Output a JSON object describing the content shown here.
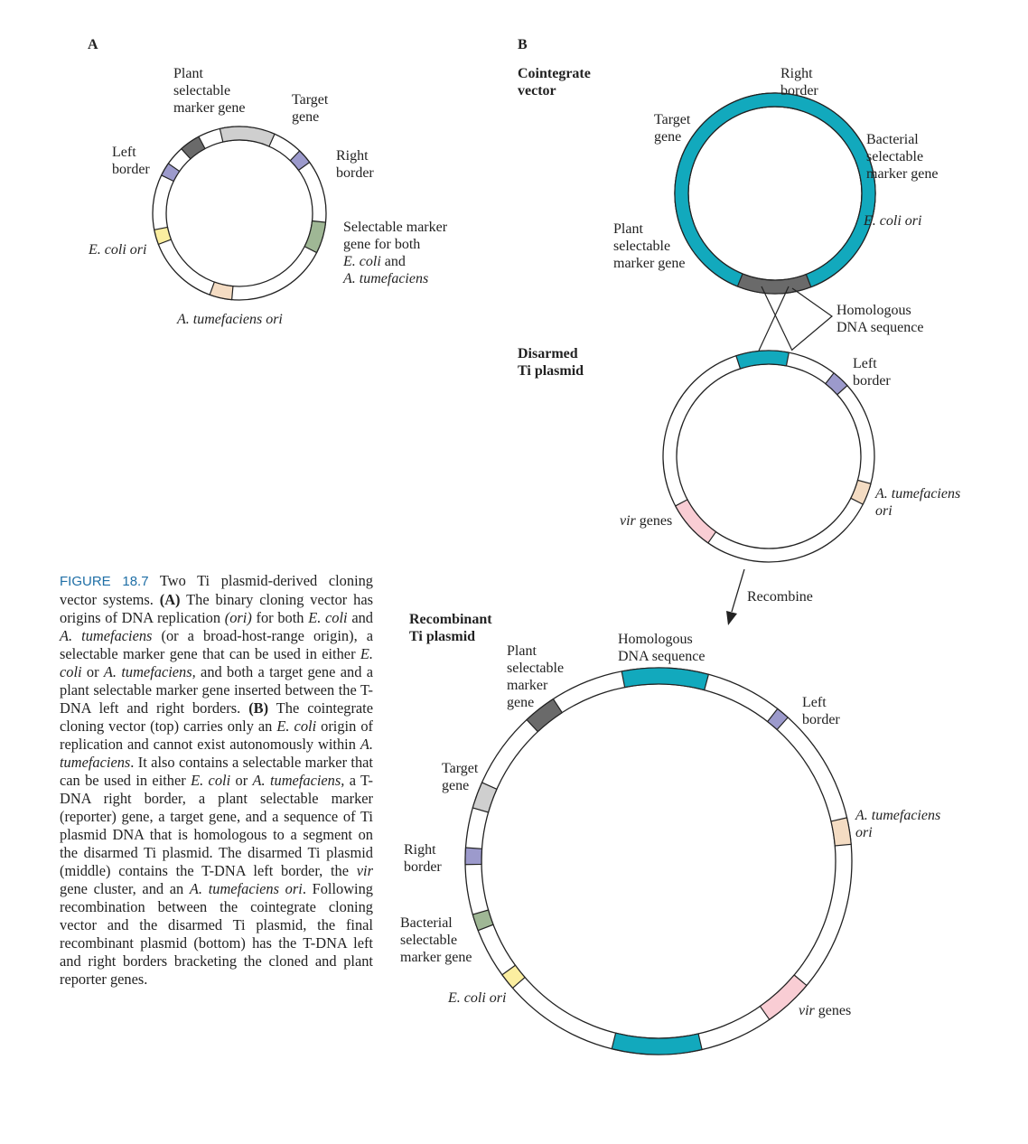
{
  "panel_a": {
    "letter": "A",
    "labels": {
      "plant_marker": [
        "Plant",
        "selectable",
        "marker gene"
      ],
      "target": [
        "Target",
        "gene"
      ],
      "left_border": [
        "Left",
        "border"
      ],
      "right_border": [
        "Right",
        "border"
      ],
      "selectable_marker": [
        "Selectable marker",
        "gene for both"
      ],
      "selectable_marker_species": [
        "E. coli",
        " and",
        "A. tumefaciens"
      ],
      "ecoli_ori": "E. coli ori",
      "atum_ori": "A. tumefaciens ori"
    }
  },
  "panel_b": {
    "letter": "B",
    "cointegrate": {
      "title": [
        "Cointegrate",
        "vector"
      ],
      "right_border": [
        "Right",
        "border"
      ],
      "target": [
        "Target",
        "gene"
      ],
      "bacterial_marker": [
        "Bacterial",
        "selectable",
        "marker gene"
      ],
      "ecoli_ori": "E. coli ori",
      "plant_marker": [
        "Plant",
        "selectable",
        "marker gene"
      ]
    },
    "homologous": [
      "Homologous",
      "DNA sequence"
    ],
    "disarmed": {
      "title": [
        "Disarmed",
        "Ti plasmid"
      ],
      "left_border": [
        "Left",
        "border"
      ],
      "atum_ori": [
        "A. tumefaciens",
        "ori"
      ],
      "vir_italic": "vir",
      "vir_rest": " genes"
    },
    "recombine": "Recombine",
    "recombinant": {
      "title": [
        "Recombinant",
        "Ti plasmid"
      ],
      "plant_marker": [
        "Plant",
        "selectable",
        "marker",
        "gene"
      ],
      "homologous": [
        "Homologous",
        "DNA sequence"
      ],
      "left_border": [
        "Left",
        "border"
      ],
      "target": [
        "Target",
        "gene"
      ],
      "atum_ori": [
        "A. tumefaciens",
        "ori"
      ],
      "right_border": [
        "Right",
        "border"
      ],
      "bacterial_marker": [
        "Bacterial",
        "selectable",
        "marker gene"
      ],
      "ecoli_ori": "E. coli ori",
      "vir_italic": "vir",
      "vir_rest": " genes"
    }
  },
  "caption": {
    "figure_number": "FIGURE 18.7",
    "parts": [
      {
        "t": " Two Ti plasmid-derived cloning vector systems. "
      },
      {
        "t": "(A)",
        "b": true
      },
      {
        "t": " The binary cloning vector has origins of DNA replication "
      },
      {
        "t": "(ori)",
        "i": true
      },
      {
        "t": " for both "
      },
      {
        "t": "E. coli",
        "i": true
      },
      {
        "t": " and "
      },
      {
        "t": "A. tumefaciens",
        "i": true
      },
      {
        "t": " (or a broad-host-range origin), a selectable marker gene that can be used in either "
      },
      {
        "t": "E. coli",
        "i": true
      },
      {
        "t": " or "
      },
      {
        "t": "A. tumefaciens,",
        "i": true
      },
      {
        "t": " and both a target gene and a plant selectable marker gene inserted between the T-DNA left and right borders. "
      },
      {
        "t": "(B)",
        "b": true
      },
      {
        "t": " The cointegrate cloning vector (top) carries only an "
      },
      {
        "t": "E. coli",
        "i": true
      },
      {
        "t": " origin of replication and cannot exist autonomously within "
      },
      {
        "t": "A. tumefaciens",
        "i": true
      },
      {
        "t": ". It also contains a selectable marker that can be used in either "
      },
      {
        "t": "E. coli",
        "i": true
      },
      {
        "t": " or "
      },
      {
        "t": "A. tumefaciens,",
        "i": true
      },
      {
        "t": " a T-DNA right border, a plant selectable marker (reporter) gene, a target gene, and a sequence of Ti plasmid DNA that is homologous to a segment on the disarmed Ti plasmid. The disarmed Ti plasmid (middle) contains the T-DNA left border, the "
      },
      {
        "t": "vir",
        "i": true
      },
      {
        "t": " gene cluster, and an "
      },
      {
        "t": "A. tumefaciens ori",
        "i": true
      },
      {
        "t": ". Following recombination between the cointegrate cloning vector and the disarmed Ti plasmid, the final recombinant plasmid (bottom) has the T-DNA left and right borders bracketing the cloned and plant reporter genes."
      }
    ]
  },
  "colors": {
    "plant_marker": "#6a6a6a",
    "target": "#cfcfcf",
    "border": "#9c9acc",
    "bacterial_marker": "#9fb795",
    "ecoli_ori": "#fbeea0",
    "atum_ori": "#f4dcc3",
    "homologous": "#12a9bd",
    "vir": "#f9cdd4"
  }
}
